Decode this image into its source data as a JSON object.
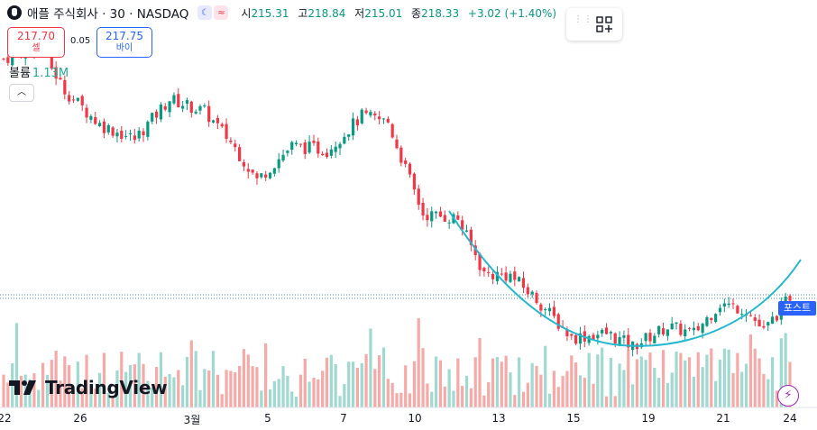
{
  "header": {
    "title": "애플 주식회사 · 30 · NASDAQ",
    "badge_moon": "☾",
    "badge_wave": "≈",
    "open_label": "시",
    "open": "215.31",
    "high_label": "고",
    "high": "218.84",
    "low_label": "저",
    "low": "215.01",
    "close_label": "종",
    "close": "218.33",
    "change": "+3.02 (+1.40%)"
  },
  "trade": {
    "sell_price": "217.70",
    "sell_label": "셀",
    "spread": "0.05",
    "buy_price": "217.75",
    "buy_label": "바이"
  },
  "volume": {
    "label": "볼륨",
    "value": "1.13M"
  },
  "collapse_icon": "chevron-up-icon",
  "logo_text": "TradingView",
  "post_label": "포스트",
  "colors": {
    "up": "#089981",
    "down": "#f23645",
    "vol_up": "#9fd9cf",
    "vol_down": "#f7a9a7",
    "curve": "#22b8cf",
    "price_line": "#4a8ea6"
  },
  "chart_data": {
    "type": "candlestick",
    "interval": "30",
    "x_tick_labels": [
      "22",
      "26",
      "3월",
      "5",
      "7",
      "10",
      "13",
      "15",
      "19",
      "21",
      "24"
    ],
    "price_key_points": [
      {
        "bar": 0,
        "close": 246.2
      },
      {
        "bar": 8,
        "close": 247.8
      },
      {
        "bar": 14,
        "close": 242.5
      },
      {
        "bar": 22,
        "close": 238.5
      },
      {
        "bar": 30,
        "close": 236.8
      },
      {
        "bar": 38,
        "close": 241.5
      },
      {
        "bar": 46,
        "close": 240.0
      },
      {
        "bar": 52,
        "close": 236.5
      },
      {
        "bar": 58,
        "close": 232.0
      },
      {
        "bar": 66,
        "close": 236.0
      },
      {
        "bar": 74,
        "close": 235.5
      },
      {
        "bar": 82,
        "close": 239.5
      },
      {
        "bar": 88,
        "close": 238.8
      },
      {
        "bar": 90,
        "close": 236.0
      },
      {
        "bar": 96,
        "close": 228.0
      },
      {
        "bar": 104,
        "close": 227.5
      },
      {
        "bar": 110,
        "close": 221.0
      },
      {
        "bar": 116,
        "close": 220.8
      },
      {
        "bar": 122,
        "close": 218.0
      },
      {
        "bar": 130,
        "close": 213.5
      },
      {
        "bar": 138,
        "close": 214.0
      },
      {
        "bar": 144,
        "close": 212.5
      },
      {
        "bar": 152,
        "close": 214.8
      },
      {
        "bar": 158,
        "close": 214.0
      },
      {
        "bar": 164,
        "close": 217.5
      },
      {
        "bar": 170,
        "close": 216.8
      },
      {
        "bar": 174,
        "close": 214.2
      },
      {
        "bar": 180,
        "close": 218.33
      }
    ],
    "last_close": 218.33,
    "has_volume": true
  }
}
